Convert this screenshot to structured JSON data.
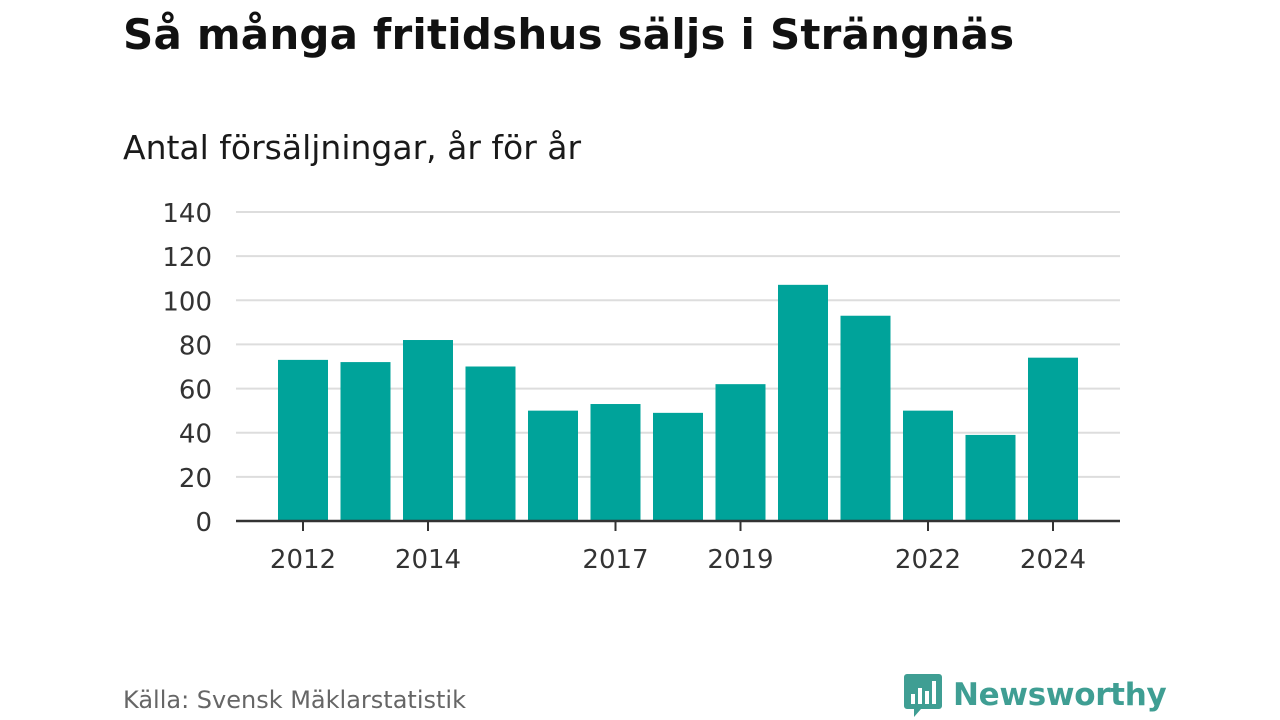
{
  "title": "Så många fritidshus säljs i Strängnäs",
  "subtitle": "Antal försäljningar, år för år",
  "source": "Källa: Svensk Mäklarstatistik",
  "brand": {
    "name": "Newsworthy",
    "icon": "newsworthy-logo-icon",
    "color": "#3f9e93"
  },
  "colors": {
    "bar": "#00a39a",
    "grid": "#dddddd",
    "axis": "#333333",
    "tick_text": "#333333"
  },
  "chart_data": {
    "type": "bar",
    "categories": [
      "2012",
      "2013",
      "2014",
      "2015",
      "2016",
      "2017",
      "2018",
      "2019",
      "2020",
      "2021",
      "2022",
      "2023",
      "2024"
    ],
    "values": [
      73,
      72,
      82,
      70,
      50,
      53,
      49,
      62,
      107,
      93,
      50,
      39,
      74
    ],
    "x_tick_labels": [
      "2012",
      "2014",
      "2017",
      "2019",
      "2022",
      "2024"
    ],
    "y_ticks": [
      0,
      20,
      40,
      60,
      80,
      100,
      120,
      140
    ],
    "ylim": [
      0,
      140
    ],
    "grid": true,
    "legend": "none"
  }
}
